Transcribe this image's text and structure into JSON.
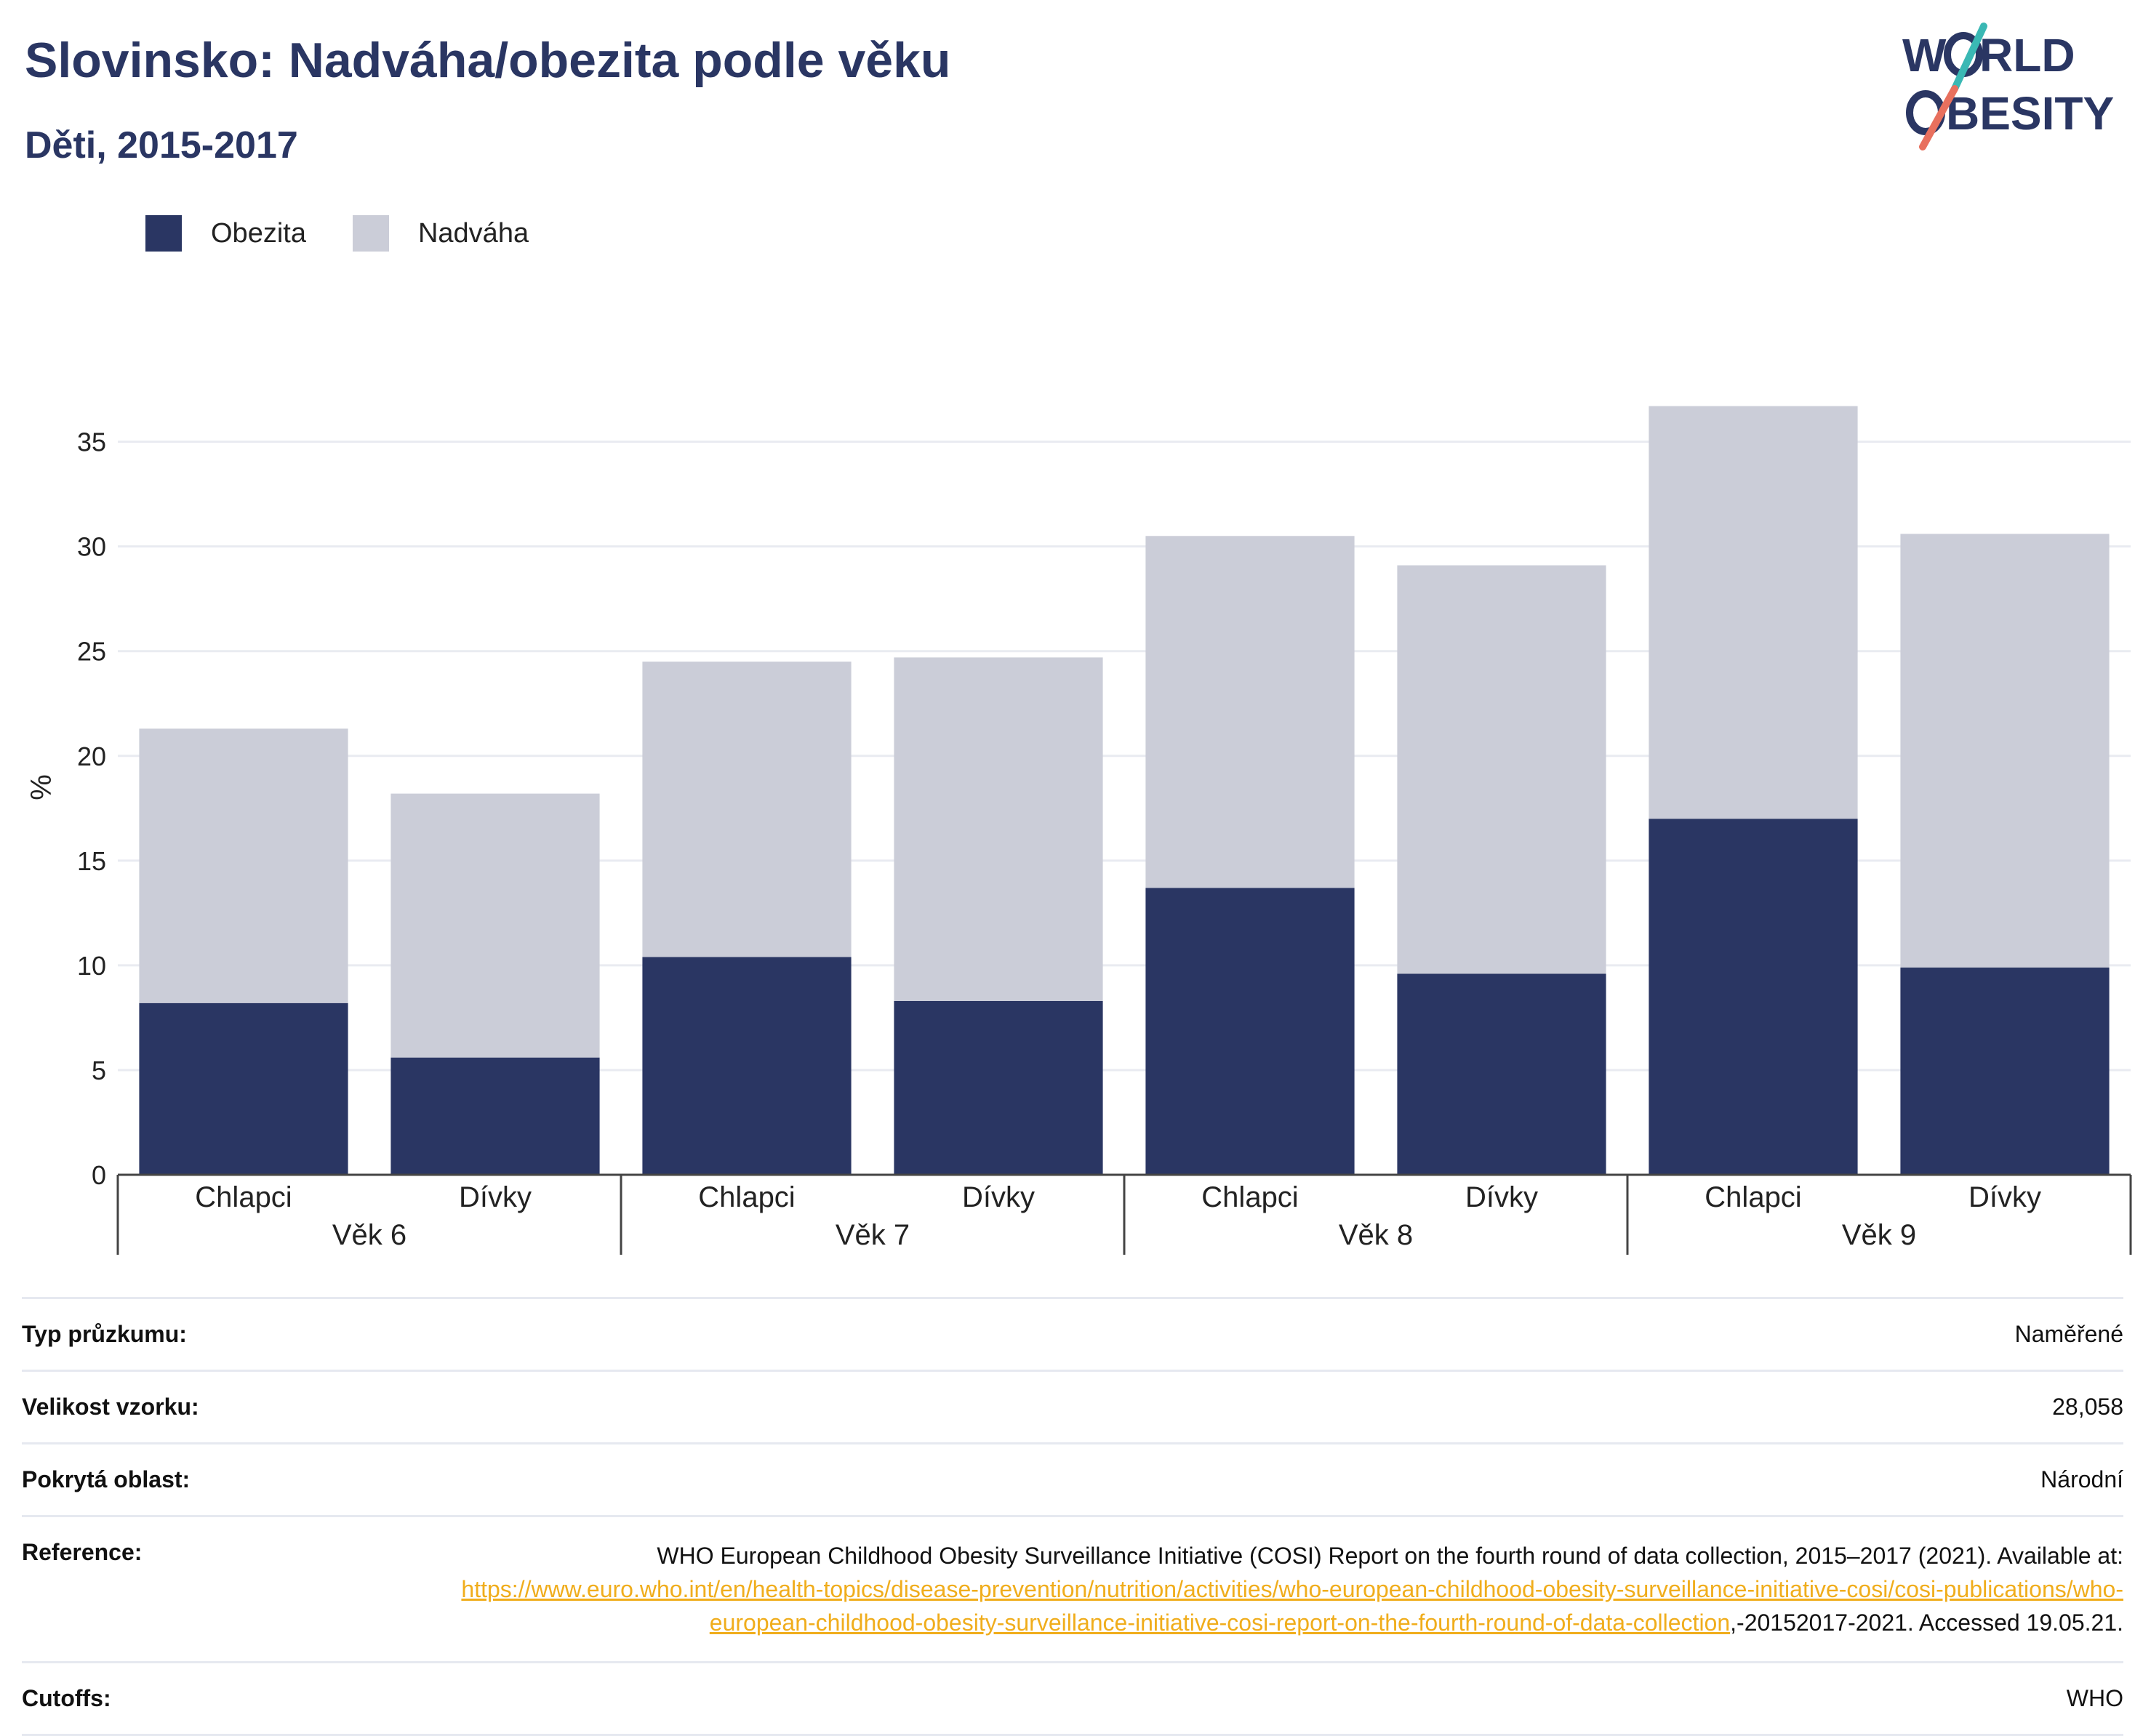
{
  "title": "Slovinsko: Nadváha/obezita podle věku",
  "subtitle": "Děti, 2015-2017",
  "logo": {
    "line1_left": "W",
    "line1_right": "RLD",
    "line2_left": "",
    "line2_right": "BESITY",
    "colors": {
      "text": "#2a3663",
      "slash_top": "#3ab8b4",
      "slash_bottom": "#e8705e"
    }
  },
  "legend": [
    {
      "label": "Obezita",
      "color": "#2a3663"
    },
    {
      "label": "Nadváha",
      "color": "#cbcdd8"
    }
  ],
  "chart_data": {
    "type": "bar",
    "stacked": true,
    "ylabel": "%",
    "ylim": [
      0,
      37
    ],
    "yticks": [
      0,
      5,
      10,
      15,
      20,
      25,
      30,
      35
    ],
    "grid": true,
    "groups": [
      "Věk 6",
      "Věk 7",
      "Věk 8",
      "Věk 9"
    ],
    "categories": [
      "Chlapci",
      "Dívky",
      "Chlapci",
      "Dívky",
      "Chlapci",
      "Dívky",
      "Chlapci",
      "Dívky"
    ],
    "series": [
      {
        "name": "Obezita",
        "color": "#2a3663",
        "values": [
          8.2,
          5.6,
          10.4,
          8.3,
          13.7,
          9.6,
          17.0,
          9.9
        ]
      },
      {
        "name": "Nadváha",
        "color": "#cbcdd8",
        "values": [
          13.1,
          12.6,
          14.1,
          16.4,
          16.8,
          19.5,
          19.7,
          20.7
        ]
      }
    ]
  },
  "info": {
    "survey_type": {
      "label": "Typ průzkumu:",
      "value": "Naměřené"
    },
    "sample_size": {
      "label": "Velikost vzorku:",
      "value": "28,058"
    },
    "area": {
      "label": "Pokrytá oblast:",
      "value": "Národní"
    },
    "reference": {
      "label": "Reference:",
      "text1": "WHO European Childhood Obesity Surveillance Initiative (COSI) Report on the fourth round of data collection, 2015–2017 (2021). Available at: ",
      "url": "https://www.euro.who.int/en/health-topics/disease-prevention/nutrition/activities/who-european-childhood-obesity-surveillance-initiative-cosi/cosi-publications/who-european-childhood-obesity-surveillance-initiative-cosi-report-on-the-fourth-round-of-data-collection",
      "text2": ",-20152017-2021. Accessed 19.05.21."
    },
    "cutoffs": {
      "label": "Cutoffs:",
      "value": "WHO"
    }
  }
}
